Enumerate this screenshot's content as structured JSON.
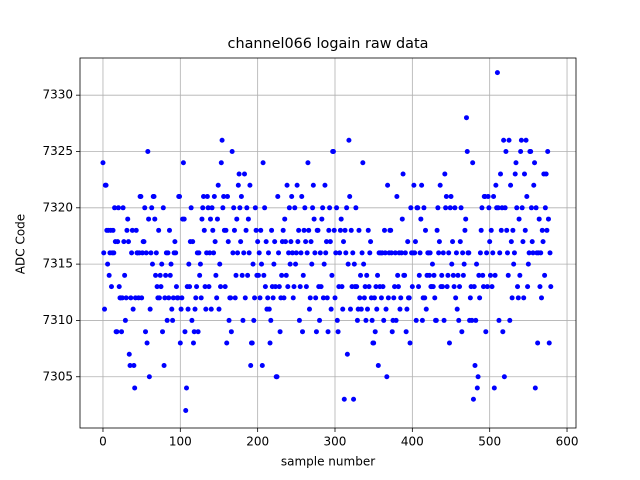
{
  "chart_data": {
    "type": "scatter",
    "title": "channel066 logain raw data",
    "x_label": "sample number",
    "y_label": "ADC Code",
    "color": "#0000ff",
    "grid": true,
    "xlim": [
      -29.7,
      611.6
    ],
    "ylim": [
      7300.45,
      7333.3
    ],
    "xticks": [
      0,
      100,
      200,
      300,
      400,
      500,
      600
    ],
    "yticks": [
      7305,
      7310,
      7315,
      7320,
      7325,
      7330
    ],
    "x": [
      0,
      1,
      2,
      3,
      4,
      5,
      6,
      7,
      8,
      9,
      10,
      11,
      12,
      13,
      14,
      15,
      16,
      17,
      18,
      19,
      20,
      21,
      22,
      23,
      24,
      25,
      26,
      27,
      28,
      29,
      30,
      31,
      32,
      33,
      34,
      35,
      36,
      37,
      38,
      39,
      40,
      41,
      42,
      43,
      44,
      45,
      46,
      47,
      48,
      49,
      50,
      51,
      52,
      53,
      54,
      55,
      56,
      57,
      58,
      59,
      60,
      61,
      62,
      63,
      64,
      65,
      66,
      67,
      68,
      69,
      70,
      71,
      72,
      73,
      74,
      75,
      76,
      77,
      78,
      79,
      80,
      81,
      82,
      83,
      84,
      85,
      86,
      87,
      88,
      89,
      90,
      91,
      92,
      93,
      94,
      95,
      96,
      97,
      98,
      99,
      100,
      101,
      102,
      103,
      104,
      105,
      106,
      107,
      108,
      109,
      110,
      111,
      112,
      113,
      114,
      115,
      116,
      117,
      118,
      119,
      120,
      121,
      122,
      123,
      124,
      125,
      126,
      127,
      128,
      129,
      130,
      131,
      132,
      133,
      134,
      135,
      136,
      137,
      138,
      139,
      140,
      141,
      142,
      143,
      144,
      145,
      146,
      147,
      148,
      149,
      150,
      151,
      152,
      153,
      154,
      155,
      156,
      157,
      158,
      159,
      160,
      161,
      162,
      163,
      164,
      165,
      166,
      167,
      168,
      169,
      170,
      171,
      172,
      173,
      174,
      175,
      176,
      177,
      178,
      179,
      180,
      181,
      182,
      183,
      184,
      185,
      186,
      187,
      188,
      189,
      190,
      191,
      192,
      193,
      194,
      195,
      196,
      197,
      198,
      199,
      200,
      201,
      202,
      203,
      204,
      205,
      206,
      207,
      208,
      209,
      210,
      211,
      212,
      213,
      214,
      215,
      216,
      217,
      218,
      219,
      220,
      221,
      222,
      223,
      224,
      225,
      226,
      227,
      228,
      229,
      230,
      231,
      232,
      233,
      234,
      235,
      236,
      237,
      238,
      239,
      240,
      241,
      242,
      243,
      244,
      245,
      246,
      247,
      248,
      249,
      250,
      251,
      252,
      253,
      254,
      255,
      256,
      257,
      258,
      259,
      260,
      261,
      262,
      263,
      264,
      265,
      266,
      267,
      268,
      269,
      270,
      271,
      272,
      273,
      274,
      275,
      276,
      277,
      278,
      279,
      280,
      281,
      282,
      283,
      284,
      285,
      286,
      287,
      288,
      289,
      290,
      291,
      292,
      293,
      294,
      295,
      296,
      297,
      298,
      299,
      300,
      301,
      302,
      303,
      304,
      305,
      306,
      307,
      308,
      309,
      310,
      311,
      312,
      313,
      314,
      315,
      316,
      317,
      318,
      319,
      320,
      321,
      322,
      323,
      324,
      325,
      326,
      327,
      328,
      329,
      330,
      331,
      332,
      333,
      334,
      335,
      336,
      337,
      338,
      339,
      340,
      341,
      342,
      343,
      344,
      345,
      346,
      347,
      348,
      349,
      350,
      351,
      352,
      353,
      354,
      355,
      356,
      357,
      358,
      359,
      360,
      361,
      362,
      363,
      364,
      365,
      366,
      367,
      368,
      369,
      370,
      371,
      372,
      373,
      374,
      375,
      376,
      377,
      378,
      379,
      380,
      381,
      382,
      383,
      384,
      385,
      386,
      387,
      388,
      389,
      390,
      391,
      392,
      393,
      394,
      395,
      396,
      397,
      398,
      399,
      400,
      401,
      402,
      403,
      404,
      405,
      406,
      407,
      408,
      409,
      410,
      411,
      412,
      413,
      414,
      415,
      416,
      417,
      418,
      419,
      420,
      421,
      422,
      423,
      424,
      425,
      426,
      427,
      428,
      429,
      430,
      431,
      432,
      433,
      434,
      435,
      436,
      437,
      438,
      439,
      440,
      441,
      442,
      443,
      444,
      445,
      446,
      447,
      448,
      449,
      450,
      451,
      452,
      453,
      454,
      455,
      456,
      457,
      458,
      459,
      460,
      461,
      462,
      463,
      464,
      465,
      466,
      467,
      468,
      469,
      470,
      471,
      472,
      473,
      474,
      475,
      476,
      477,
      478,
      479,
      480,
      481,
      482,
      483,
      484,
      485,
      486,
      487,
      488,
      489,
      490,
      491,
      492,
      493,
      494,
      495,
      496,
      497,
      498,
      499,
      500,
      501,
      502,
      503,
      504,
      505,
      506,
      507,
      508,
      509,
      510,
      511,
      512,
      513,
      514,
      515,
      516,
      517,
      518,
      519,
      520,
      521,
      522,
      523,
      524,
      525,
      526,
      527,
      528,
      529,
      530,
      531,
      532,
      533,
      534,
      535,
      536,
      537,
      538,
      539,
      540,
      541,
      542,
      543,
      544,
      545,
      546,
      547,
      548,
      549,
      550,
      551,
      552,
      553,
      554,
      555,
      556,
      557,
      558,
      559,
      560,
      561,
      562,
      563,
      564,
      565,
      566,
      567,
      568,
      569,
      570,
      571,
      572,
      573,
      574,
      575,
      576,
      577,
      578,
      579
    ],
    "values": [
      7324,
      7316,
      7311,
      7322,
      7322,
      7318,
      7315,
      7318,
      7314,
      7316,
      7318,
      7313,
      7316,
      7318,
      7316,
      7320,
      7317,
      7309,
      7309,
      7317,
      7320,
      7313,
      7312,
      7312,
      7309,
      7312,
      7320,
      7317,
      7314,
      7310,
      7312,
      7318,
      7319,
      7317,
      7307,
      7306,
      7312,
      7316,
      7318,
      7311,
      7306,
      7304,
      7312,
      7318,
      7316,
      7316,
      7312,
      7316,
      7321,
      7321,
      7312,
      7316,
      7317,
      7317,
      7320,
      7309,
      7316,
      7308,
      7325,
      7319,
      7305,
      7311,
      7316,
      7320,
      7315,
      7321,
      7321,
      7319,
      7314,
      7316,
      7313,
      7312,
      7318,
      7312,
      7314,
      7313,
      7315,
      7309,
      7320,
      7306,
      7312,
      7314,
      7316,
      7310,
      7316,
      7312,
      7318,
      7314,
      7315,
      7311,
      7310,
      7312,
      7316,
      7317,
      7316,
      7313,
      7312,
      7312,
      7321,
      7321,
      7308,
      7311,
      7312,
      7319,
      7324,
      7319,
      7309,
      7302,
      7304,
      7313,
      7311,
      7315,
      7313,
      7317,
      7320,
      7310,
      7317,
      7308,
      7309,
      7311,
      7312,
      7313,
      7316,
      7309,
      7316,
      7314,
      7315,
      7312,
      7319,
      7320,
      7321,
      7318,
      7313,
      7311,
      7316,
      7321,
      7320,
      7313,
      7316,
      7319,
      7311,
      7320,
      7318,
      7316,
      7321,
      7317,
      7314,
      7312,
      7319,
      7322,
      7311,
      7315,
      7313,
      7324,
      7326,
      7320,
      7321,
      7318,
      7313,
      7318,
      7308,
      7321,
      7317,
      7310,
      7312,
      7312,
      7309,
      7325,
      7316,
      7320,
      7318,
      7312,
      7314,
      7319,
      7316,
      7322,
      7323,
      7320,
      7317,
      7321,
      7314,
      7310,
      7316,
      7323,
      7312,
      7318,
      7320,
      7314,
      7319,
      7316,
      7322,
      7306,
      7308,
      7308,
      7315,
      7310,
      7312,
      7320,
      7318,
      7314,
      7317,
      7314,
      7316,
      7312,
      7318,
      7315,
      7306,
      7324,
      7314,
      7320,
      7313,
      7317,
      7311,
      7312,
      7316,
      7311,
      7308,
      7310,
      7318,
      7313,
      7312,
      7315,
      7317,
      7313,
      7305,
      7305,
      7321,
      7316,
      7313,
      7309,
      7312,
      7314,
      7317,
      7318,
      7312,
      7319,
      7317,
      7314,
      7322,
      7313,
      7316,
      7320,
      7315,
      7317,
      7321,
      7316,
      7312,
      7313,
      7320,
      7315,
      7316,
      7322,
      7317,
      7318,
      7310,
      7313,
      7316,
      7321,
      7309,
      7314,
      7318,
      7320,
      7317,
      7313,
      7316,
      7324,
      7318,
      7311,
      7312,
      7317,
      7315,
      7320,
      7322,
      7319,
      7316,
      7312,
      7309,
      7318,
      7318,
      7313,
      7310,
      7316,
      7313,
      7319,
      7320,
      7312,
      7315,
      7322,
      7316,
      7317,
      7312,
      7309,
      7318,
      7320,
      7317,
      7311,
      7314,
      7325,
      7325,
      7318,
      7312,
      7316,
      7320,
      7310,
      7309,
      7313,
      7316,
      7318,
      7319,
      7313,
      7311,
      7317,
      7303,
      7318,
      7316,
      7320,
      7307,
      7315,
      7326,
      7321,
      7311,
      7318,
      7313,
      7316,
      7303,
      7315,
      7313,
      7320,
      7313,
      7310,
      7311,
      7318,
      7312,
      7314,
      7311,
      7316,
      7324,
      7315,
      7312,
      7313,
      7310,
      7314,
      7311,
      7318,
      7313,
      7316,
      7317,
      7312,
      7310,
      7308,
      7308,
      7312,
      7309,
      7313,
      7311,
      7314,
      7306,
      7316,
      7313,
      7316,
      7312,
      7316,
      7313,
      7310,
      7318,
      7316,
      7311,
      7305,
      7322,
      7312,
      7316,
      7318,
      7318,
      7316,
      7309,
      7310,
      7312,
      7313,
      7316,
      7310,
      7321,
      7314,
      7313,
      7316,
      7311,
      7312,
      7316,
      7319,
      7323,
      7314,
      7314,
      7316,
      7309,
      7311,
      7317,
      7312,
      7312,
      7308,
      7320,
      7316,
      7313,
      7316,
      7322,
      7316,
      7317,
      7310,
      7320,
      7320,
      7313,
      7314,
      7316,
      7319,
      7322,
      7310,
      7312,
      7320,
      7312,
      7318,
      7311,
      7314,
      7316,
      7316,
      7314,
      7316,
      7313,
      7313,
      7315,
      7313,
      7314,
      7312,
      7310,
      7310,
      7318,
      7320,
      7316,
      7317,
      7322,
      7313,
      7314,
      7313,
      7316,
      7310,
      7323,
      7320,
      7321,
      7313,
      7314,
      7316,
      7308,
      7320,
      7321,
      7315,
      7317,
      7314,
      7313,
      7320,
      7312,
      7316,
      7311,
      7314,
      7310,
      7313,
      7317,
      7320,
      7309,
      7316,
      7314,
      7315,
      7318,
      7319,
      7328,
      7325,
      7316,
      7316,
      7310,
      7312,
      7313,
      7310,
      7324,
      7303,
      7313,
      7306,
      7310,
      7315,
      7304,
      7305,
      7314,
      7312,
      7316,
      7318,
      7320,
      7314,
      7313,
      7321,
      7321,
      7309,
      7316,
      7313,
      7321,
      7320,
      7317,
      7314,
      7318,
      7313,
      7316,
      7321,
      7304,
      7314,
      7322,
      7320,
      7332,
      7320,
      7310,
      7316,
      7323,
      7318,
      7320,
      7309,
      7326,
      7305,
      7320,
      7325,
      7318,
      7316,
      7314,
      7326,
      7310,
      7322,
      7317,
      7312,
      7318,
      7315,
      7316,
      7323,
      7324,
      7320,
      7313,
      7312,
      7319,
      7314,
      7325,
      7326,
      7320,
      7317,
      7312,
      7323,
      7318,
      7326,
      7321,
      7313,
      7315,
      7316,
      7325,
      7325,
      7320,
      7317,
      7316,
      7322,
      7324,
      7304,
      7320,
      7316,
      7308,
      7316,
      7319,
      7313,
      7316,
      7312,
      7318,
      7317,
      7323,
      7314,
      7320,
      7323,
      7318,
      7325,
      7319,
      7308,
      7316,
      7313
    ]
  }
}
